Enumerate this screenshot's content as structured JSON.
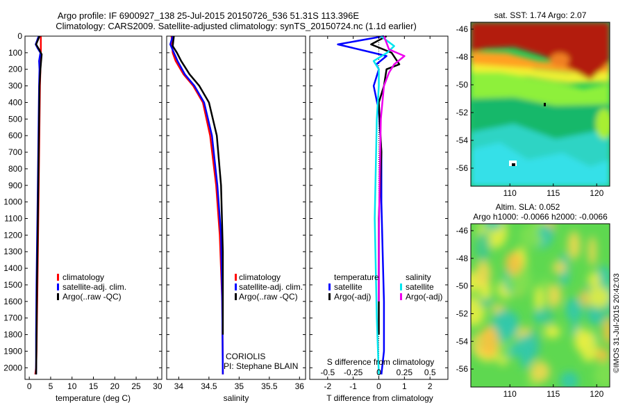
{
  "header": {
    "line1": "Argo profile: IF 6900927_138 25-Jul-2015 20150726_536 51.31S 113.396E",
    "line2": "Climatology: CARS2009. Satellite-adjusted climatology: synTS_20150724.nc (1.1d earlier)"
  },
  "side_stamp": "©IMOS 31-Jul-2015 20:42:03",
  "colors": {
    "climatology": "#ff0000",
    "satellite": "#0000ff",
    "argo": "#000000",
    "sat_salinity": "#00e5ee",
    "argo_salinity": "#ee00ee"
  },
  "chart_data": [
    {
      "type": "line",
      "xlabel": "temperature (deg C)",
      "ylabel": "",
      "xlim": [
        -1,
        31
      ],
      "ylim": [
        2070,
        0
      ],
      "xticks": [
        0,
        5,
        10,
        15,
        20,
        25,
        30
      ],
      "yticks": [
        0,
        100,
        200,
        300,
        400,
        500,
        600,
        700,
        800,
        900,
        1000,
        1100,
        1200,
        1300,
        1400,
        1500,
        1600,
        1700,
        1800,
        1900,
        2000
      ],
      "legend": [
        "climatology",
        "satellite-adj. clim.",
        "Argo(..raw -QC)"
      ],
      "series": [
        {
          "name": "climatology",
          "color": "#ff0000",
          "x": [
            2.7,
            2.7,
            2.6,
            2.5,
            2.4,
            2.3,
            2.2,
            2.1,
            2.0,
            1.9,
            1.8,
            1.7,
            1.6,
            1.4
          ],
          "y": [
            0,
            100,
            200,
            300,
            500,
            700,
            900,
            1100,
            1300,
            1500,
            1700,
            1900,
            2000,
            2040
          ]
        },
        {
          "name": "satellite-adj. clim.",
          "color": "#0000ff",
          "x": [
            2.2,
            1.5,
            2.0,
            2.6,
            2.3,
            2.4,
            2.3,
            2.2,
            2.1,
            2.0,
            1.9,
            1.8,
            1.7,
            1.6,
            1.6
          ],
          "y": [
            0,
            50,
            75,
            100,
            150,
            200,
            300,
            500,
            700,
            900,
            1100,
            1300,
            1500,
            1800,
            2040
          ]
        },
        {
          "name": "Argo(..raw -QC)",
          "color": "#000000",
          "x": [
            2.4,
            1.6,
            2.3,
            2.9,
            2.6,
            2.4,
            2.3,
            2.2,
            2.1,
            2.0,
            1.9,
            1.8,
            1.7,
            1.6
          ],
          "y": [
            0,
            50,
            80,
            110,
            200,
            300,
            500,
            700,
            900,
            1100,
            1300,
            1500,
            1800,
            2040
          ]
        }
      ]
    },
    {
      "type": "line",
      "xlabel": "salinity",
      "ylabel": "",
      "xlim": [
        33.8,
        36.1
      ],
      "ylim": [
        2070,
        0
      ],
      "xticks": [
        34,
        34.5,
        35,
        35.5,
        36
      ],
      "xticklabels": [
        "34",
        "34.5",
        "35",
        "35.5",
        "36"
      ],
      "legend": [
        "climatology",
        "satellite-adj. clim.",
        "Argo(..raw -QC)"
      ],
      "annotation": [
        "CORIOLIS",
        "PI: Stephane BLAIN"
      ],
      "series": [
        {
          "name": "climatology",
          "color": "#ff0000",
          "x": [
            33.88,
            33.9,
            33.95,
            34.08,
            34.24,
            34.4,
            34.52,
            34.62,
            34.68,
            34.72,
            34.73,
            34.73
          ],
          "y": [
            0,
            100,
            150,
            230,
            300,
            400,
            600,
            900,
            1200,
            1600,
            2000,
            2040
          ]
        },
        {
          "name": "satellite-adj. clim.",
          "color": "#0000ff",
          "x": [
            33.9,
            33.86,
            33.92,
            33.98,
            34.1,
            34.26,
            34.42,
            34.55,
            34.64,
            34.7,
            34.72,
            34.73
          ],
          "y": [
            0,
            50,
            100,
            150,
            230,
            300,
            400,
            600,
            900,
            1200,
            1600,
            2040
          ]
        },
        {
          "name": "Argo(..raw -QC)",
          "color": "#000000",
          "x": [
            33.92,
            33.9,
            33.97,
            34.04,
            34.18,
            34.34,
            34.5,
            34.63,
            34.7,
            34.73,
            34.73
          ],
          "y": [
            0,
            60,
            100,
            150,
            230,
            300,
            400,
            600,
            900,
            1300,
            1800
          ]
        }
      ]
    },
    {
      "type": "line",
      "xlabel": "T difference from climatology",
      "x2label": "S difference from climatology",
      "xlim": [
        -2.7,
        2.7
      ],
      "x2lim": [
        -0.675,
        0.675
      ],
      "ylim": [
        2070,
        0
      ],
      "xticks": [
        -2,
        -1,
        0,
        1,
        2
      ],
      "x2ticks": [
        -0.5,
        -0.25,
        0,
        0.25,
        0.5
      ],
      "x2ticklabels": [
        "-0.5",
        "-0.25",
        "0",
        "0.25",
        "0.5"
      ],
      "legend": {
        "temperature_heading": "temperature",
        "salinity_heading": "salinity",
        "temperature": [
          "satellite",
          "Argo(-adj)"
        ],
        "salinity": [
          "satellite",
          "Argo(-adj)"
        ]
      },
      "series": [
        {
          "name": "satellite",
          "group": "temperature",
          "color": "#0000ff",
          "x": [
            0.2,
            -1.6,
            -0.5,
            0.3,
            -0.1,
            0.0,
            -0.2,
            0.0,
            0.1,
            0.1,
            0.15,
            0.2,
            0.2,
            0.1
          ],
          "y": [
            0,
            50,
            90,
            120,
            170,
            200,
            300,
            450,
            700,
            1000,
            1300,
            1600,
            1900,
            2040
          ]
        },
        {
          "name": "Argo(-adj)",
          "group": "temperature",
          "color": "#000000",
          "x": [
            0.3,
            -0.3,
            0.5,
            0.8,
            0.3,
            0.2,
            0.0,
            0.1,
            0.0,
            0.0,
            0.0
          ],
          "y": [
            0,
            50,
            100,
            170,
            200,
            300,
            400,
            700,
            1100,
            1500,
            1800
          ]
        },
        {
          "name": "satellite",
          "group": "salinity",
          "color": "#00e5ee",
          "x": [
            0.02,
            0.15,
            0.08,
            -0.05,
            0.0,
            0.0,
            -0.02,
            -0.03,
            -0.04,
            -0.03,
            -0.02,
            0.0
          ],
          "y": [
            0,
            60,
            100,
            150,
            200,
            300,
            500,
            800,
            1100,
            1400,
            1700,
            2040
          ]
        },
        {
          "name": "Argo(-adj)",
          "group": "salinity",
          "color": "#ee00ee",
          "x": [
            0.05,
            0.1,
            0.25,
            0.15,
            0.1,
            0.05,
            0.02,
            0.01,
            0.0,
            0.0
          ],
          "y": [
            0,
            80,
            120,
            170,
            220,
            300,
            500,
            800,
            1200,
            1600
          ]
        }
      ]
    },
    {
      "type": "heatmap",
      "title": "sat. SST: 1.74 Argo: 2.07",
      "xlim": [
        105.5,
        121.5
      ],
      "ylim": [
        -57.3,
        -45.5
      ],
      "xticks": [
        110,
        115,
        120
      ],
      "yticks": [
        -46,
        -48,
        -50,
        -52,
        -54,
        -56
      ]
    },
    {
      "type": "heatmap",
      "title": [
        "Altim. SLA: 0.052",
        "Argo h1000: -0.0066 h2000: -0.0066"
      ],
      "xlim": [
        105.5,
        121.5
      ],
      "ylim": [
        -57.3,
        -45.5
      ],
      "xticks": [
        110,
        115,
        120
      ],
      "yticks": [
        -46,
        -48,
        -50,
        -52,
        -54,
        -56
      ]
    }
  ]
}
